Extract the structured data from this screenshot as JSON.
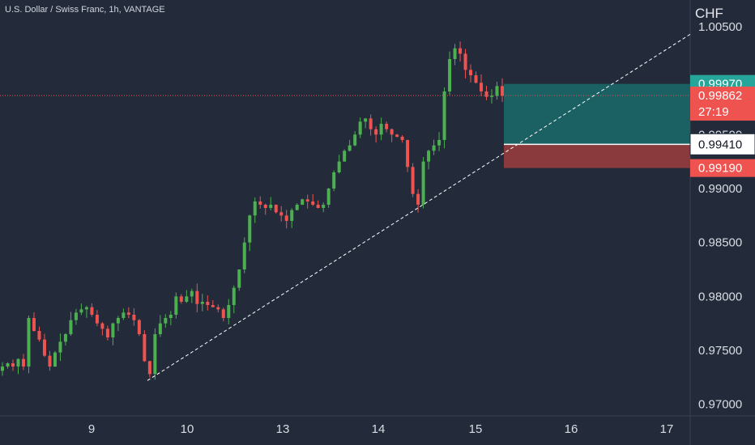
{
  "header": {
    "title": "U.S. Dollar / Swiss Franc, 1h, VANTAGE"
  },
  "colors": {
    "background": "#232b3b",
    "bull": "#26a69a",
    "bull_candle": "#4caf50",
    "bear": "#ef5350",
    "profit_zone": "#1b6163",
    "loss_zone": "#8a3a3d",
    "trendline": "#ffffff",
    "price_line": "#ef5350"
  },
  "chart_data": {
    "type": "candlestick",
    "symbol": "U.S. Dollar / Swiss Franc",
    "interval": "1h",
    "broker": "VANTAGE",
    "currency": "CHF",
    "y_axis": {
      "ticks": [
        "1.00500",
        "0.99500",
        "0.99000",
        "0.98500",
        "0.98000",
        "0.97500",
        "0.97000"
      ],
      "ylim": [
        0.9695,
        1.0055
      ]
    },
    "x_axis": {
      "ticks": [
        "9",
        "10",
        "13",
        "14",
        "15",
        "16",
        "17"
      ]
    },
    "close_path": [
      0.9735,
      0.9738,
      0.9735,
      0.9742,
      0.9735,
      0.978,
      0.9768,
      0.976,
      0.9745,
      0.9735,
      0.9748,
      0.9758,
      0.9765,
      0.9778,
      0.9785,
      0.9788,
      0.979,
      0.9783,
      0.9775,
      0.977,
      0.9762,
      0.9775,
      0.978,
      0.9785,
      0.9783,
      0.9778,
      0.9765,
      0.974,
      0.9728,
      0.9765,
      0.9775,
      0.978,
      0.9783,
      0.98,
      0.9795,
      0.98,
      0.9805,
      0.9793,
      0.9795,
      0.9792,
      0.979,
      0.9788,
      0.978,
      0.9792,
      0.9808,
      0.9825,
      0.985,
      0.9875,
      0.9888,
      0.9885,
      0.9882,
      0.9885,
      0.9878,
      0.9875,
      0.987,
      0.988,
      0.9885,
      0.989,
      0.9888,
      0.9885,
      0.9882,
      0.9885,
      0.99,
      0.9915,
      0.9925,
      0.9935,
      0.994,
      0.995,
      0.9962,
      0.9965,
      0.9955,
      0.995,
      0.996,
      0.9955,
      0.995,
      0.9948,
      0.9945,
      0.992,
      0.9895,
      0.9885,
      0.9925,
      0.9935,
      0.994,
      0.9945,
      0.999,
      1.002,
      1.003,
      1.0025,
      1.001,
      1.0005,
      0.9998,
      0.999,
      0.9985,
      0.9986,
      0.9995,
      0.9986
    ],
    "projection": {
      "entry": "0.99410",
      "take_profit": "0.99970",
      "stop_loss": "0.99190"
    },
    "trendline": {
      "from": [
        "9",
        0.9722
      ],
      "to": [
        "17",
        1.0043
      ],
      "style": "dashed"
    },
    "current_price": {
      "value": "0.99862",
      "countdown": "27:19"
    }
  }
}
